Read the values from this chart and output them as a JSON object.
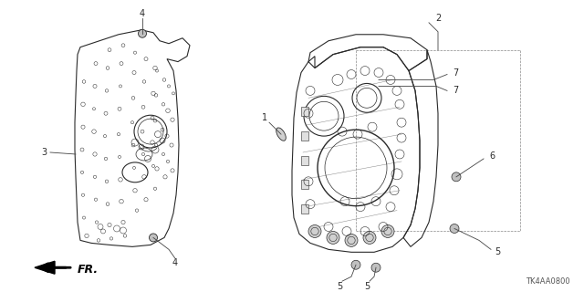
{
  "bg_color": "#ffffff",
  "fig_width": 6.4,
  "fig_height": 3.2,
  "dpi": 100,
  "part_number": "TK4AA0800",
  "color_main": "#2a2a2a",
  "color_line": "#444444",
  "color_light": "#888888"
}
